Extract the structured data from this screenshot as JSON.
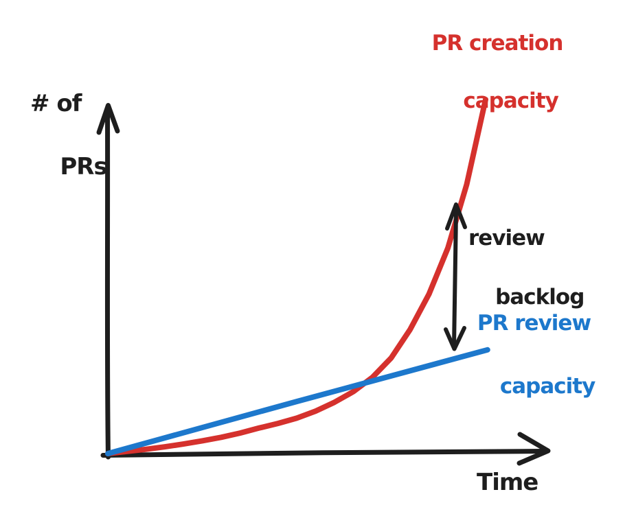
{
  "figure": {
    "kind": "hand-drawn concept sketch",
    "background": "#ffffff"
  },
  "colors": {
    "ink": "#1e1e1e",
    "creation": "#d5312d",
    "review": "#1d78cc"
  },
  "labels": {
    "y_axis_line1": "# of",
    "y_axis_line2": "PRs",
    "x_axis": "Time",
    "creation_line1": "PR creation",
    "creation_line2": "capacity",
    "backlog_line1": "review",
    "backlog_line2": "backlog",
    "review_line1": "PR review",
    "review_line2": "capacity"
  },
  "chart_data": {
    "type": "line",
    "style": "hand-drawn",
    "title": "",
    "xlabel": "Time",
    "ylabel": "# of PRs",
    "grid": false,
    "legend_position": "inline-annotations",
    "x_axis": {
      "label": "Time",
      "ticks": [],
      "range": [
        0,
        11.7
      ],
      "numeric_scale_shown": false
    },
    "y_axis": {
      "label": "# of PRs",
      "ticks": [],
      "range": [
        0,
        10
      ],
      "numeric_scale_shown": false
    },
    "series": [
      {
        "name": "PR creation capacity",
        "color": "#d5312d",
        "shape": "exponential",
        "stroke_width": 8,
        "x": [
          0,
          0.5,
          1,
          1.5,
          2,
          2.5,
          3,
          3.5,
          4,
          4.5,
          5,
          5.5,
          6,
          6.5,
          7,
          7.5,
          8,
          8.5,
          9,
          9.5,
          10
        ],
        "values": [
          0,
          0.06,
          0.12,
          0.19,
          0.27,
          0.36,
          0.46,
          0.58,
          0.72,
          0.85,
          1.0,
          1.2,
          1.45,
          1.75,
          2.15,
          2.7,
          3.5,
          4.5,
          5.8,
          7.6,
          10
        ]
      },
      {
        "name": "PR review capacity",
        "color": "#1d78cc",
        "shape": "linear",
        "stroke_width": 8,
        "x": [
          0,
          5,
          10.05
        ],
        "values": [
          0,
          1.47,
          2.93
        ]
      }
    ],
    "annotations": [
      {
        "label": "review backlog",
        "type": "double-headed-arrow",
        "color": "#1e1e1e",
        "orientation": "vertical",
        "meaning": "gap between PR creation capacity and PR review capacity",
        "at_x": 9.2
      }
    ],
    "crossing_point": {
      "x": 6.9,
      "value": 2.0,
      "note": "creation curve overtakes review line"
    }
  }
}
